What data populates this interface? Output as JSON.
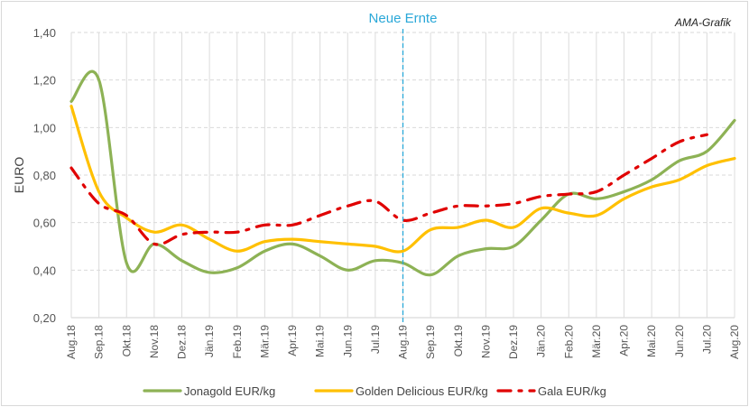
{
  "chart_data": {
    "type": "line",
    "title": "",
    "annotation": "Neue Ernte",
    "annotation_x": "Aug.19",
    "source_label": "AMA-Grafik",
    "ylabel": "EURO",
    "xlabel": "",
    "ylim": [
      0.2,
      1.4
    ],
    "yticks": [
      "0,20",
      "0,40",
      "0,60",
      "0,80",
      "1,00",
      "1,20",
      "1,40"
    ],
    "grid": true,
    "legend_position": "bottom",
    "categories": [
      "Aug.18",
      "Sep.18",
      "Okt.18",
      "Nov.18",
      "Dez.18",
      "Jän.19",
      "Feb.19",
      "Mär.19",
      "Apr.19",
      "Mai.19",
      "Jun.19",
      "Jul.19",
      "Aug.19",
      "Sep.19",
      "Okt.19",
      "Nov.19",
      "Dez.19",
      "Jän.20",
      "Feb.20",
      "Mär.20",
      "Apr.20",
      "Mai.20",
      "Jun.20",
      "Jul.20",
      "Aug.20"
    ],
    "series": [
      {
        "name": "Jonagold EUR/kg",
        "color": "#8db255",
        "style": "solid",
        "values": [
          1.11,
          1.2,
          0.43,
          0.51,
          0.44,
          0.39,
          0.41,
          0.48,
          0.51,
          0.46,
          0.4,
          0.44,
          0.43,
          0.38,
          0.46,
          0.49,
          0.5,
          0.61,
          0.72,
          0.7,
          0.73,
          0.78,
          0.86,
          0.9,
          1.03
        ]
      },
      {
        "name": "Golden Delicious EUR/kg",
        "color": "#ffc000",
        "style": "solid",
        "values": [
          1.09,
          0.73,
          0.62,
          0.56,
          0.59,
          0.53,
          0.48,
          0.52,
          0.53,
          0.52,
          0.51,
          0.5,
          0.48,
          0.57,
          0.58,
          0.61,
          0.58,
          0.66,
          0.64,
          0.63,
          0.7,
          0.75,
          0.78,
          0.84,
          0.87
        ]
      },
      {
        "name": "Gala EUR/kg",
        "color": "#e00000",
        "style": "dash-dot",
        "values": [
          0.83,
          0.68,
          0.63,
          0.51,
          0.55,
          0.56,
          0.56,
          0.59,
          0.59,
          0.63,
          0.67,
          0.69,
          0.61,
          0.64,
          0.67,
          0.67,
          0.68,
          0.71,
          0.72,
          0.73,
          0.8,
          0.87,
          0.94,
          0.97,
          null
        ]
      }
    ]
  }
}
